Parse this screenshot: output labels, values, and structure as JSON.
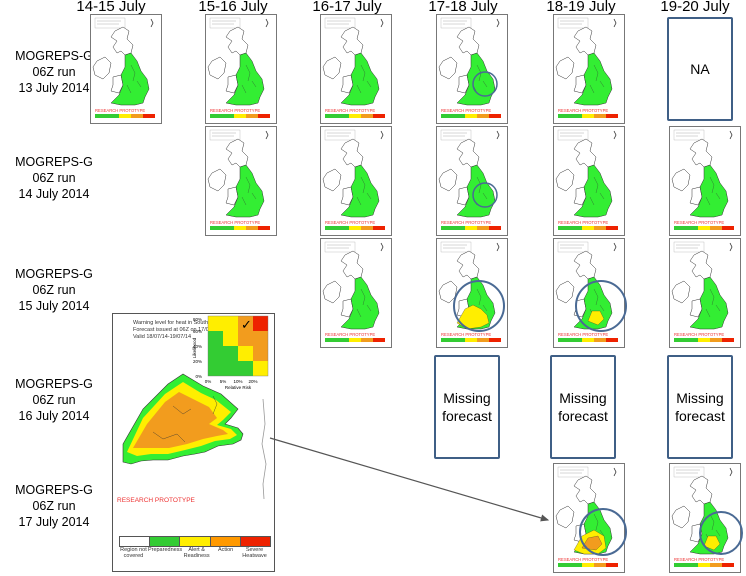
{
  "columns": [
    "14-15 July",
    "15-16 July",
    "16-17 July",
    "17-18 July",
    "18-19 July",
    "19-20 July"
  ],
  "rows": [
    {
      "model": "MOGREPS-G",
      "run": "06Z run",
      "date": "13 July 2014"
    },
    {
      "model": "MOGREPS-G",
      "run": "06Z run",
      "date": "14 July 2014"
    },
    {
      "model": "MOGREPS-G",
      "run": "06Z run",
      "date": "15 July 2014"
    },
    {
      "model": "MOGREPS-G",
      "run": "06Z run",
      "date": "16 July 2014"
    },
    {
      "model": "MOGREPS-G",
      "run": "06Z run",
      "date": "17 July 2014"
    }
  ],
  "thumbnail_stamp": "RESEARCH PROTOTYPE",
  "not_available_label": "NA",
  "missing_forecast_lines": [
    "Missing",
    "forecast"
  ],
  "inset": {
    "header_lines": [
      "Warning level for heat in South",
      "Forecast issued at 06Z on 17/07",
      "Valid 18/07/14-19/07/14"
    ],
    "likelihood_label": "Likelihood",
    "relative_risk_label": "Relative Risk",
    "matrix_y_ticks": [
      "80%",
      "60%",
      "40%",
      "20%",
      "0%"
    ],
    "matrix_x_ticks": [
      "0%",
      "5%",
      "10%",
      "20%"
    ],
    "checkmark": "✓",
    "stamp": "RESEARCH PROTOTYPE",
    "legend": [
      {
        "label": "Region not covered",
        "color": "#ffffff"
      },
      {
        "label": "Preparedness",
        "color": "#33cc33"
      },
      {
        "label": "Alert & Readiness",
        "color": "#ffee00"
      },
      {
        "label": "Action",
        "color": "#ff9900"
      },
      {
        "label": "Severe Heatwave",
        "color": "#ee2200"
      }
    ]
  },
  "colors": {
    "green": "#33ee33",
    "yellow": "#ffee00",
    "orange": "#f29c1e",
    "red": "#ee2200",
    "box_border": "#3f5f86",
    "circle": "#4a6a94",
    "arrow": "#555555"
  }
}
